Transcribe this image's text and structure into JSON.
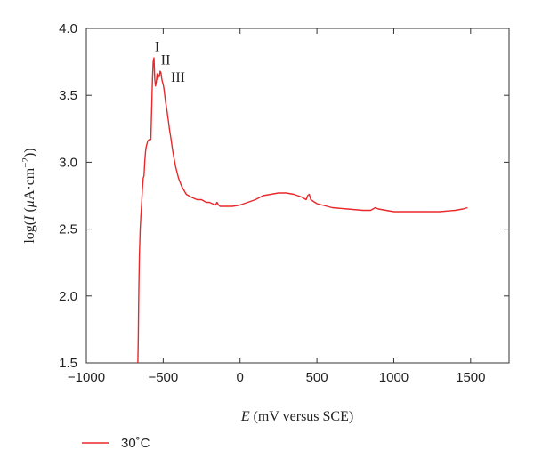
{
  "chart_data": {
    "type": "line",
    "title": "",
    "xlabel_italic": "E",
    "xlabel_rest": " (mV versus SCE)",
    "ylabel_prefix": "log(",
    "ylabel_italic": "I",
    "ylabel_mid": " (",
    "ylabel_mu": "μ",
    "ylabel_suffix": "A·cm",
    "ylabel_exp": "−2",
    "ylabel_close": "))",
    "xlim": [
      -1000,
      1750
    ],
    "ylim": [
      1.5,
      4.0
    ],
    "xticks": [
      -1000,
      -500,
      0,
      500,
      1000,
      1500
    ],
    "xtick_labels": [
      "−1000",
      "−500",
      "0",
      "500",
      "1000",
      "1500"
    ],
    "yticks": [
      1.5,
      2.0,
      2.5,
      3.0,
      3.5,
      4.0
    ],
    "ytick_labels": [
      "1.5",
      "2.0",
      "2.5",
      "3.0",
      "3.5",
      "4.0"
    ],
    "grid": false,
    "legend_position": "bottom-left",
    "series": [
      {
        "name": "30˚C",
        "color": "#e8282b",
        "x": [
          -665,
          -662,
          -660,
          -658,
          -655,
          -650,
          -645,
          -640,
          -635,
          -630,
          -625,
          -620,
          -615,
          -610,
          -600,
          -590,
          -580,
          -575,
          -570,
          -565,
          -560,
          -555,
          -550,
          -545,
          -540,
          -535,
          -530,
          -525,
          -520,
          -515,
          -510,
          -505,
          -500,
          -495,
          -490,
          -485,
          -480,
          -475,
          -470,
          -465,
          -460,
          -450,
          -440,
          -430,
          -420,
          -400,
          -380,
          -350,
          -320,
          -300,
          -280,
          -250,
          -220,
          -200,
          -180,
          -160,
          -150,
          -140,
          -130,
          -120,
          -100,
          -50,
          0,
          50,
          100,
          150,
          200,
          250,
          300,
          350,
          400,
          430,
          440,
          450,
          460,
          500,
          600,
          700,
          800,
          850,
          880,
          900,
          950,
          1000,
          1100,
          1200,
          1300,
          1400,
          1450,
          1480
        ],
        "y": [
          1.5,
          1.7,
          1.9,
          2.1,
          2.3,
          2.5,
          2.6,
          2.7,
          2.8,
          2.88,
          2.9,
          3.0,
          3.08,
          3.12,
          3.16,
          3.17,
          3.17,
          3.4,
          3.62,
          3.75,
          3.78,
          3.62,
          3.57,
          3.6,
          3.66,
          3.62,
          3.65,
          3.64,
          3.68,
          3.67,
          3.63,
          3.6,
          3.58,
          3.55,
          3.5,
          3.45,
          3.42,
          3.38,
          3.34,
          3.3,
          3.25,
          3.18,
          3.1,
          3.03,
          2.97,
          2.88,
          2.82,
          2.76,
          2.74,
          2.73,
          2.72,
          2.72,
          2.7,
          2.7,
          2.69,
          2.68,
          2.7,
          2.68,
          2.67,
          2.67,
          2.67,
          2.67,
          2.68,
          2.7,
          2.72,
          2.75,
          2.76,
          2.77,
          2.77,
          2.76,
          2.74,
          2.72,
          2.75,
          2.76,
          2.72,
          2.69,
          2.66,
          2.65,
          2.64,
          2.64,
          2.66,
          2.65,
          2.64,
          2.63,
          2.63,
          2.63,
          2.63,
          2.64,
          2.65,
          2.66
        ]
      }
    ],
    "annotations": [
      {
        "text": "I",
        "x": -555,
        "y": 3.83
      },
      {
        "text": "II",
        "x": -515,
        "y": 3.73
      },
      {
        "text": "III",
        "x": -450,
        "y": 3.6
      }
    ]
  }
}
